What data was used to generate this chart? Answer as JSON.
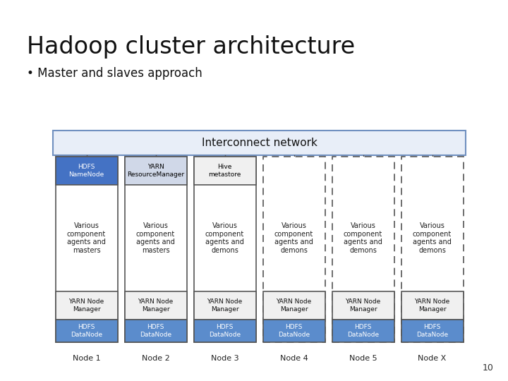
{
  "title": "Hadoop cluster architecture",
  "subtitle": "• Master and slaves approach",
  "bg_color": "#ffffff",
  "interconnect_label": "Interconnect network",
  "nodes": [
    {
      "id": "Node 1",
      "solid": true,
      "top_label": "HDFS\nNameNode",
      "top_fc": "#4472c4",
      "top_tc": "#ffffff",
      "top_ec": "#555555",
      "mid_text": "Various\ncomponent\nagents and\nmasters"
    },
    {
      "id": "Node 2",
      "solid": true,
      "top_label": "YARN\nResourceManager",
      "top_fc": "#d0d8e8",
      "top_tc": "#000000",
      "top_ec": "#555555",
      "mid_text": "Various\ncomponent\nagents and\nmasters"
    },
    {
      "id": "Node 3",
      "solid": true,
      "top_label": "Hive\nmetastore",
      "top_fc": "#f0f0f0",
      "top_tc": "#000000",
      "top_ec": "#555555",
      "mid_text": "Various\ncomponent\nagents and\ndemons"
    },
    {
      "id": "Node 4",
      "solid": false,
      "top_label": null,
      "top_fc": null,
      "top_tc": null,
      "top_ec": null,
      "mid_text": "Various\ncomponent\nagents and\ndemons"
    },
    {
      "id": "Node 5",
      "solid": false,
      "top_label": null,
      "top_fc": null,
      "top_tc": null,
      "top_ec": null,
      "mid_text": "Various\ncomponent\nagents and\ndemons"
    },
    {
      "id": "Node X",
      "solid": false,
      "top_label": null,
      "top_fc": null,
      "top_tc": null,
      "top_ec": null,
      "mid_text": "Various\ncomponent\nagents and\ndemons"
    }
  ],
  "page_number": "10",
  "ic_box_color": "#e8eef8",
  "ic_edge_color": "#7090c0",
  "yarn_nm_fc": "#f0f0f0",
  "hdfs_dn_fc": "#5b8ccc",
  "hdfs_dn_tc": "#ffffff",
  "node_ec_solid": "#555555",
  "node_ec_dash": "#555555"
}
